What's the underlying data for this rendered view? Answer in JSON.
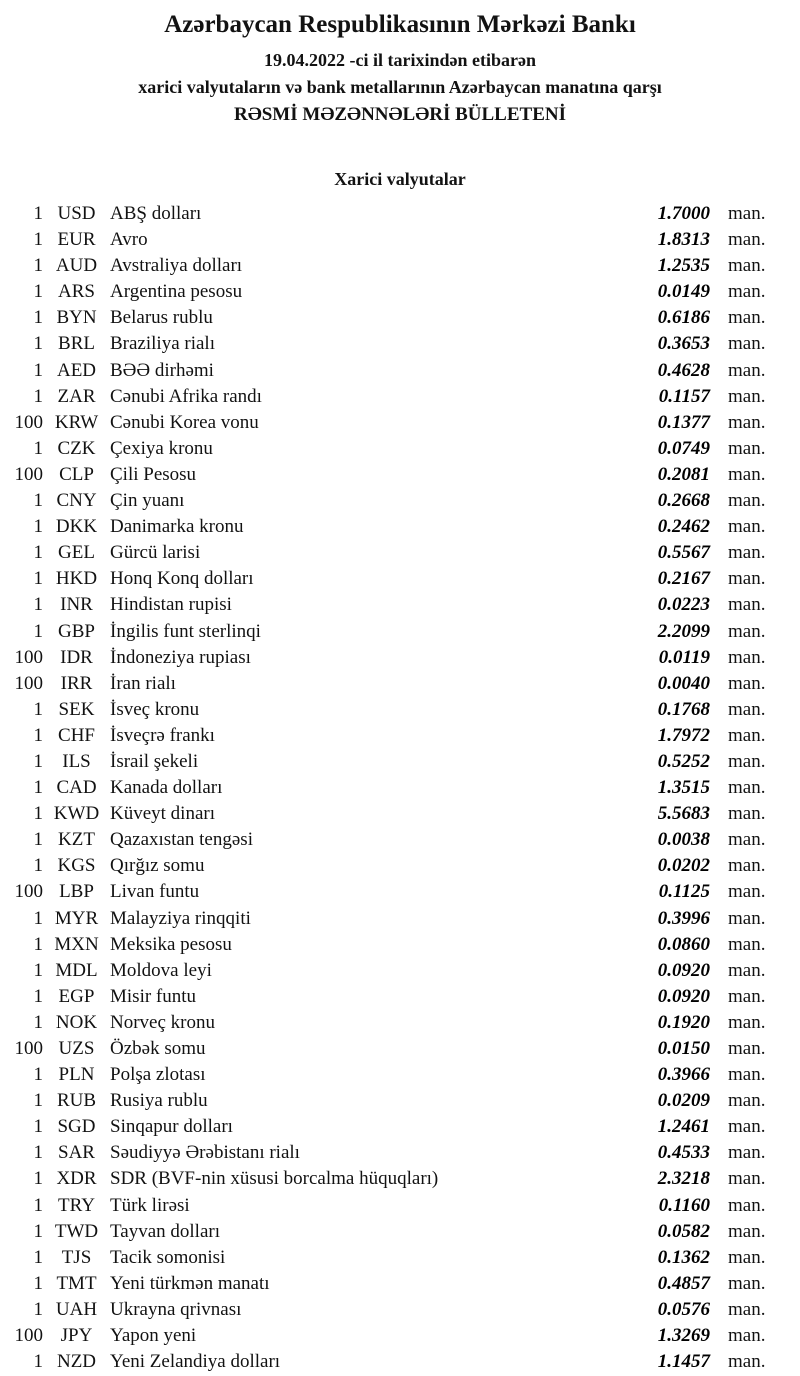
{
  "header": {
    "title": "Azərbaycan Respublikasının Mərkəzi Bankı",
    "date_line": "19.04.2022 -ci il tarixindən etibarən",
    "subtitle": "xarici valyutaların və bank metallarının Azərbaycan manatına qarşı",
    "bulletin_line": "RƏSMİ MƏZƏNNƏLƏRİ BÜLLETENİ"
  },
  "section": {
    "title": "Xarici valyutalar"
  },
  "unit_label": "man.",
  "text_color": "#121212",
  "background_color": "#ffffff",
  "rates": [
    {
      "qty": "1",
      "code": "USD",
      "name": "ABŞ dolları",
      "rate": "1.7000"
    },
    {
      "qty": "1",
      "code": "EUR",
      "name": "Avro",
      "rate": "1.8313"
    },
    {
      "qty": "1",
      "code": "AUD",
      "name": "Avstraliya dolları",
      "rate": "1.2535"
    },
    {
      "qty": "1",
      "code": "ARS",
      "name": "Argentina pesosu",
      "rate": "0.0149"
    },
    {
      "qty": "1",
      "code": "BYN",
      "name": "Belarus rublu",
      "rate": "0.6186"
    },
    {
      "qty": "1",
      "code": "BRL",
      "name": "Braziliya rialı",
      "rate": "0.3653"
    },
    {
      "qty": "1",
      "code": "AED",
      "name": "BƏƏ dirhəmi",
      "rate": "0.4628"
    },
    {
      "qty": "1",
      "code": "ZAR",
      "name": "Cənubi Afrika randı",
      "rate": "0.1157"
    },
    {
      "qty": "100",
      "code": "KRW",
      "name": "Cənubi Korea vonu",
      "rate": "0.1377"
    },
    {
      "qty": "1",
      "code": "CZK",
      "name": "Çexiya kronu",
      "rate": "0.0749"
    },
    {
      "qty": "100",
      "code": "CLP",
      "name": "Çili Pesosu",
      "rate": "0.2081"
    },
    {
      "qty": "1",
      "code": "CNY",
      "name": "Çin yuanı",
      "rate": "0.2668"
    },
    {
      "qty": "1",
      "code": "DKK",
      "name": "Danimarka kronu",
      "rate": "0.2462"
    },
    {
      "qty": "1",
      "code": "GEL",
      "name": "Gürcü larisi",
      "rate": "0.5567"
    },
    {
      "qty": "1",
      "code": "HKD",
      "name": "Honq Konq dolları",
      "rate": "0.2167"
    },
    {
      "qty": "1",
      "code": "INR",
      "name": "Hindistan rupisi",
      "rate": "0.0223"
    },
    {
      "qty": "1",
      "code": "GBP",
      "name": "İngilis funt sterlinqi",
      "rate": "2.2099"
    },
    {
      "qty": "100",
      "code": "IDR",
      "name": "İndoneziya rupiası",
      "rate": "0.0119"
    },
    {
      "qty": "100",
      "code": "IRR",
      "name": "İran rialı",
      "rate": "0.0040"
    },
    {
      "qty": "1",
      "code": "SEK",
      "name": "İsveç kronu",
      "rate": "0.1768"
    },
    {
      "qty": "1",
      "code": "CHF",
      "name": "İsveçrə frankı",
      "rate": "1.7972"
    },
    {
      "qty": "1",
      "code": "ILS",
      "name": "İsrail şekeli",
      "rate": "0.5252"
    },
    {
      "qty": "1",
      "code": "CAD",
      "name": "Kanada dolları",
      "rate": "1.3515"
    },
    {
      "qty": "1",
      "code": "KWD",
      "name": "Küveyt dinarı",
      "rate": "5.5683"
    },
    {
      "qty": "1",
      "code": "KZT",
      "name": "Qazaxıstan tengəsi",
      "rate": "0.0038"
    },
    {
      "qty": "1",
      "code": "KGS",
      "name": "Qırğız somu",
      "rate": "0.0202"
    },
    {
      "qty": "100",
      "code": "LBP",
      "name": "Livan funtu",
      "rate": "0.1125"
    },
    {
      "qty": "1",
      "code": "MYR",
      "name": "Malayziya rinqqiti",
      "rate": "0.3996"
    },
    {
      "qty": "1",
      "code": "MXN",
      "name": "Meksika pesosu",
      "rate": "0.0860"
    },
    {
      "qty": "1",
      "code": "MDL",
      "name": "Moldova leyi",
      "rate": "0.0920"
    },
    {
      "qty": "1",
      "code": "EGP",
      "name": "Misir funtu",
      "rate": "0.0920"
    },
    {
      "qty": "1",
      "code": "NOK",
      "name": "Norveç kronu",
      "rate": "0.1920"
    },
    {
      "qty": "100",
      "code": "UZS",
      "name": "Özbək somu",
      "rate": "0.0150"
    },
    {
      "qty": "1",
      "code": "PLN",
      "name": "Polşa zlotası",
      "rate": "0.3966"
    },
    {
      "qty": "1",
      "code": "RUB",
      "name": "Rusiya rublu",
      "rate": "0.0209"
    },
    {
      "qty": "1",
      "code": "SGD",
      "name": "Sinqapur dolları",
      "rate": "1.2461"
    },
    {
      "qty": "1",
      "code": "SAR",
      "name": "Səudiyyə Ərəbistanı rialı",
      "rate": "0.4533"
    },
    {
      "qty": "1",
      "code": "XDR",
      "name": "SDR (BVF-nin xüsusi borcalma hüquqları)",
      "rate": "2.3218"
    },
    {
      "qty": "1",
      "code": "TRY",
      "name": "Türk lirəsi",
      "rate": "0.1160"
    },
    {
      "qty": "1",
      "code": "TWD",
      "name": "Tayvan dolları",
      "rate": "0.0582"
    },
    {
      "qty": "1",
      "code": "TJS",
      "name": "Tacik somonisi",
      "rate": "0.1362"
    },
    {
      "qty": "1",
      "code": "TMT",
      "name": "Yeni türkmən manatı",
      "rate": "0.4857"
    },
    {
      "qty": "1",
      "code": "UAH",
      "name": "Ukrayna qrivnası",
      "rate": "0.0576"
    },
    {
      "qty": "100",
      "code": "JPY",
      "name": "Yapon yeni",
      "rate": "1.3269"
    },
    {
      "qty": "1",
      "code": "NZD",
      "name": "Yeni Zelandiya dolları",
      "rate": "1.1457"
    }
  ]
}
